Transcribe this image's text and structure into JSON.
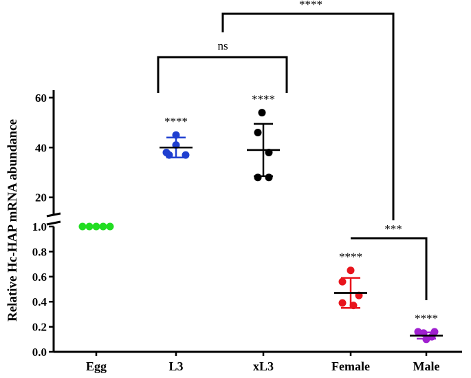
{
  "chart_data": {
    "type": "scatter",
    "title": "",
    "xlabel": "",
    "ylabel": "Relative Hc-HAP mRNA abundance",
    "y_axis_break": true,
    "lower_segment": {
      "ylim": [
        0.0,
        1.0
      ],
      "ticks": [
        "0.0",
        "0.2",
        "0.4",
        "0.6",
        "0.8",
        "1.0"
      ]
    },
    "upper_segment": {
      "ylim": [
        13,
        63
      ],
      "ticks": [
        "20",
        "40",
        "60"
      ]
    },
    "categories": [
      "Egg",
      "L3",
      "xL3",
      "Female",
      "Male"
    ],
    "groups": [
      {
        "name": "Egg",
        "color": "#22dd22",
        "points": [
          1.0,
          1.0,
          1.0,
          1.0,
          1.0
        ],
        "mean": 1.0,
        "sd": 0.0,
        "significance": ""
      },
      {
        "name": "L3",
        "color": "#1f3fd0",
        "points": [
          41,
          38,
          37,
          45,
          37
        ],
        "mean": 40,
        "sd": 4,
        "significance": "****"
      },
      {
        "name": "xL3",
        "color": "#000000",
        "points": [
          54,
          46,
          38,
          28,
          28
        ],
        "mean": 39,
        "sd": 10.5,
        "significance": "****"
      },
      {
        "name": "Female",
        "color": "#e8141c",
        "points": [
          0.65,
          0.56,
          0.45,
          0.39,
          0.37
        ],
        "mean": 0.47,
        "sd": 0.12,
        "significance": "****"
      },
      {
        "name": "Male",
        "color": "#a020d0",
        "points": [
          0.16,
          0.16,
          0.15,
          0.12,
          0.1
        ],
        "mean": 0.13,
        "sd": 0.025,
        "significance": "****"
      }
    ],
    "comparisons": [
      {
        "from": "L3",
        "to": "xL3",
        "label": "ns"
      },
      {
        "from": "L3|xL3",
        "to": "Male",
        "label": "****"
      },
      {
        "from": "Female",
        "to": "Male",
        "label": "***"
      }
    ]
  }
}
